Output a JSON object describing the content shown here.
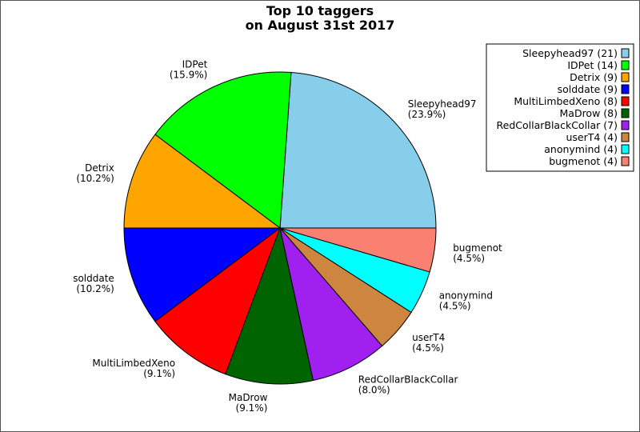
{
  "chart_data": {
    "type": "pie",
    "title_lines": [
      "Top 10 taggers",
      "on August 31st 2017"
    ],
    "legend_position": "top-right",
    "slices": [
      {
        "name": "Sleepyhead97",
        "value": 21,
        "percent_label": "(23.9%)",
        "legend_label": "Sleepyhead97 (21)",
        "color": "#87ceeb"
      },
      {
        "name": "IDPet",
        "value": 14,
        "percent_label": "(15.9%)",
        "legend_label": "IDPet (14)",
        "color": "#00ff00"
      },
      {
        "name": "Detrix",
        "value": 9,
        "percent_label": "(10.2%)",
        "legend_label": "Detrix (9)",
        "color": "#ffa500"
      },
      {
        "name": "solddate",
        "value": 9,
        "percent_label": "(10.2%)",
        "legend_label": "solddate (9)",
        "color": "#0000ff"
      },
      {
        "name": "MultiLimbedXeno",
        "value": 8,
        "percent_label": "(9.1%)",
        "legend_label": "MultiLimbedXeno (8)",
        "color": "#ff0000"
      },
      {
        "name": "MaDrow",
        "value": 8,
        "percent_label": "(9.1%)",
        "legend_label": "MaDrow (8)",
        "color": "#006400"
      },
      {
        "name": "RedCollarBlackCollar",
        "value": 7,
        "percent_label": "(8.0%)",
        "legend_label": "RedCollarBlackCollar (7)",
        "color": "#a020f0"
      },
      {
        "name": "userT4",
        "value": 4,
        "percent_label": "(4.5%)",
        "legend_label": "userT4 (4)",
        "color": "#cd853f"
      },
      {
        "name": "anonymind",
        "value": 4,
        "percent_label": "(4.5%)",
        "legend_label": "anonymind (4)",
        "color": "#00ffff"
      },
      {
        "name": "bugmenot",
        "value": 4,
        "percent_label": "(4.5%)",
        "legend_label": "bugmenot (4)",
        "color": "#fa8072"
      }
    ]
  }
}
